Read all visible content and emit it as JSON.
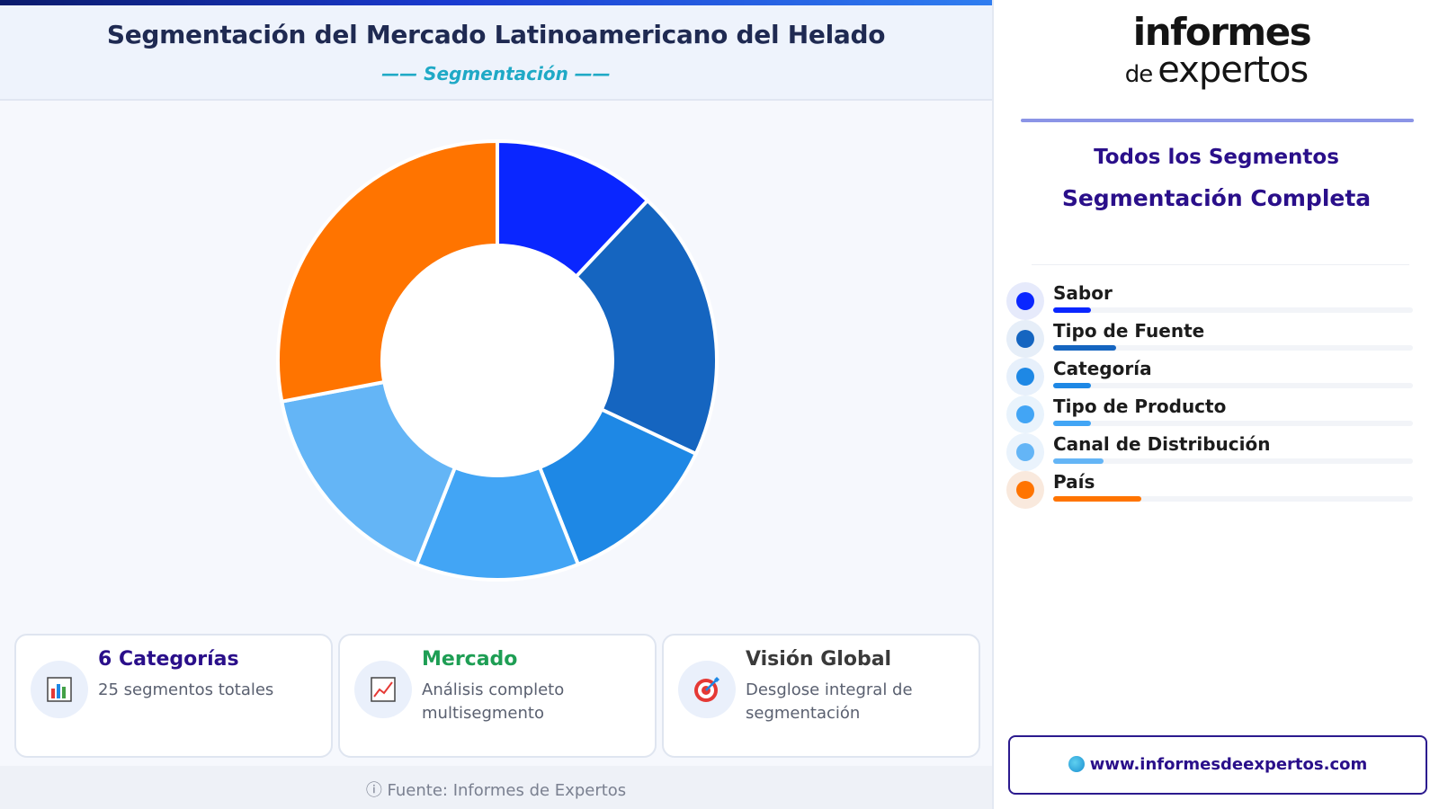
{
  "header": {
    "title": "Segmentación del Mercado Latinoamericano del Helado",
    "subtitle": "—— Segmentación ——"
  },
  "chart_data": {
    "type": "pie",
    "donut": true,
    "categories": [
      "Sabor",
      "Tipo de Fuente",
      "Categoría",
      "Tipo de Producto",
      "Canal de Distribución",
      "País"
    ],
    "values": [
      3,
      5,
      3,
      3,
      4,
      7
    ],
    "colors": [
      "#0a26ff",
      "#1565c0",
      "#1e88e5",
      "#42a5f5",
      "#64b5f6",
      "#ff7400"
    ]
  },
  "cards": [
    {
      "title": "6 Categorías",
      "text": "25 segmentos totales",
      "title_color": "#2a0f8a",
      "icon": "bar-chart-icon"
    },
    {
      "title": "Mercado",
      "text": "Análisis completo multisegmento",
      "title_color": "#1e9e54",
      "icon": "line-chart-icon"
    },
    {
      "title": "Visión Global",
      "text": "Desglose integral de segmentación",
      "title_color": "#3a3a3a",
      "icon": "target-icon"
    }
  ],
  "footer": {
    "text": "ⓘ Fuente: Informes de Expertos"
  },
  "sidebar": {
    "logo_line1": "informes",
    "logo_line2_small": "de",
    "logo_line2_big": "expertos",
    "title1": "Todos los Segmentos",
    "title2": "Segmentación Completa",
    "legend": [
      {
        "label": "Sabor",
        "color": "#0a26ff",
        "bg": "#e6eafb"
      },
      {
        "label": "Tipo de Fuente",
        "color": "#1565c0",
        "bg": "#e6eef8"
      },
      {
        "label": "Categoría",
        "color": "#1e88e5",
        "bg": "#e7f0fb"
      },
      {
        "label": "Tipo de Producto",
        "color": "#42a5f5",
        "bg": "#e9f3fc"
      },
      {
        "label": "Canal de Distribución",
        "color": "#64b5f6",
        "bg": "#eaf3fc"
      },
      {
        "label": "País",
        "color": "#ff7400",
        "bg": "#f9e9dd"
      }
    ],
    "website": "www.informesdeexpertos.com"
  }
}
